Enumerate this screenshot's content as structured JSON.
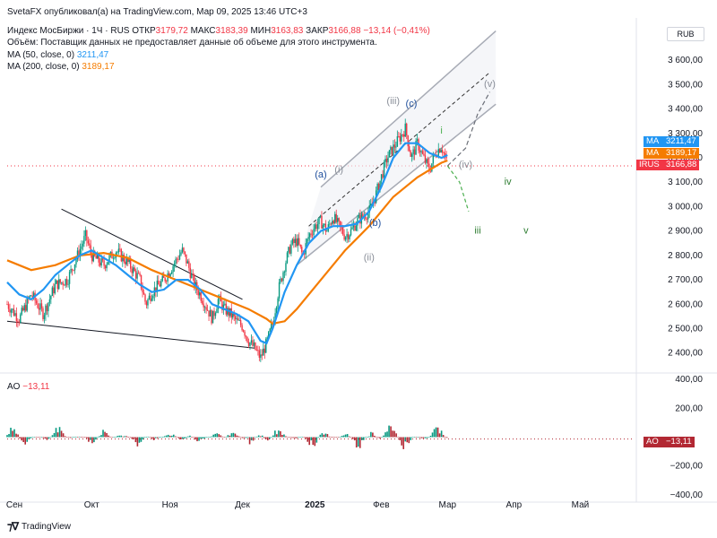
{
  "published_line": "SvetaFX опубликовал(а) на TradingView.com, Мар 09, 2025 13:46 UTC+3",
  "legend": {
    "symbol": "Индекс МосБиржи · 1Ч · RUS",
    "open_label": "ОТКР",
    "open": "3179,72",
    "high_label": "МАКС",
    "high": "3183,39",
    "low_label": "МИН",
    "low": "3163,83",
    "close_label": "ЗАКР",
    "close": "3166,88",
    "change": "−13,14 (−0,41%)",
    "volume_note": "Объём: Поставщик данных не предоставляет данные об объеме для этого инструмента.",
    "ma50_label": "MA (50, close, 0)",
    "ma50_value": "3211,47",
    "ma200_label": "MA (200, close, 0)",
    "ma200_value": "3189,17"
  },
  "currency": "RUB",
  "badges": [
    {
      "label": "MA",
      "value": "3211,47",
      "color": "#2196f3"
    },
    {
      "label": "MA",
      "value": "3189,17",
      "color": "#f57c00"
    },
    {
      "label": "IRUS",
      "value": "3166,88",
      "color": "#f23645"
    }
  ],
  "ao_legend": {
    "label": "AO",
    "value": "−13,11"
  },
  "ao_badge": {
    "label": "AO",
    "value": "−13,11",
    "color": "#b22833"
  },
  "footer": {
    "brand": "TradingView"
  },
  "chart_data": {
    "type": "line",
    "main": {
      "ylim": [
        2340,
        3700
      ],
      "y_ticks": [
        2400,
        2500,
        2600,
        2700,
        2800,
        2900,
        3000,
        3100,
        3200,
        3300,
        3400,
        3500,
        3600
      ],
      "y_tick_labels": [
        "2 400,00",
        "2 500,00",
        "2 600,00",
        "2 700,00",
        "2 800,00",
        "2 900,00",
        "3 000,00",
        "3 100,00",
        "3 200,00",
        "3 300,00",
        "3 400,00",
        "3 500,00",
        "3 600,00"
      ],
      "last_close": 3166.88,
      "price_path": [
        [
          0,
          2600
        ],
        [
          2,
          2540
        ],
        [
          4,
          2640
        ],
        [
          6,
          2560
        ],
        [
          8,
          2680
        ],
        [
          10,
          2700
        ],
        [
          12,
          2820
        ],
        [
          13,
          2880
        ],
        [
          14,
          2800
        ],
        [
          16,
          2760
        ],
        [
          18,
          2820
        ],
        [
          20,
          2770
        ],
        [
          22,
          2700
        ],
        [
          23,
          2600
        ],
        [
          24,
          2650
        ],
        [
          26,
          2700
        ],
        [
          28,
          2780
        ],
        [
          29,
          2820
        ],
        [
          30,
          2760
        ],
        [
          31,
          2680
        ],
        [
          32,
          2640
        ],
        [
          33,
          2590
        ],
        [
          34,
          2540
        ],
        [
          35,
          2620
        ],
        [
          36,
          2580
        ],
        [
          37,
          2560
        ],
        [
          38,
          2530
        ],
        [
          39,
          2510
        ],
        [
          40,
          2450
        ],
        [
          41,
          2420
        ],
        [
          42,
          2380
        ],
        [
          43,
          2440
        ],
        [
          44,
          2520
        ],
        [
          45,
          2660
        ],
        [
          46,
          2760
        ],
        [
          47,
          2840
        ],
        [
          48,
          2860
        ],
        [
          49,
          2800
        ],
        [
          50,
          2880
        ],
        [
          51,
          2920
        ],
        [
          52,
          2940
        ],
        [
          53,
          2900
        ],
        [
          54,
          2960
        ],
        [
          55,
          2920
        ],
        [
          56,
          2880
        ],
        [
          57,
          2900
        ],
        [
          58,
          2940
        ],
        [
          59,
          2960
        ],
        [
          60,
          2980
        ],
        [
          61,
          3040
        ],
        [
          62,
          3120
        ],
        [
          63,
          3200
        ],
        [
          64,
          3240
        ],
        [
          65,
          3280
        ],
        [
          66,
          3320
        ],
        [
          67,
          3200
        ],
        [
          68,
          3260
        ],
        [
          69,
          3200
        ],
        [
          70,
          3150
        ],
        [
          71,
          3220
        ],
        [
          72,
          3250
        ],
        [
          73,
          3167
        ]
      ],
      "ma50_path": [
        [
          0,
          2690
        ],
        [
          2,
          2640
        ],
        [
          4,
          2620
        ],
        [
          6,
          2660
        ],
        [
          8,
          2720
        ],
        [
          10,
          2760
        ],
        [
          12,
          2800
        ],
        [
          14,
          2820
        ],
        [
          16,
          2790
        ],
        [
          18,
          2760
        ],
        [
          20,
          2720
        ],
        [
          22,
          2680
        ],
        [
          24,
          2650
        ],
        [
          26,
          2660
        ],
        [
          28,
          2700
        ],
        [
          30,
          2700
        ],
        [
          32,
          2660
        ],
        [
          34,
          2600
        ],
        [
          36,
          2580
        ],
        [
          38,
          2560
        ],
        [
          40,
          2530
        ],
        [
          42,
          2450
        ],
        [
          43,
          2440
        ],
        [
          44,
          2500
        ],
        [
          46,
          2650
        ],
        [
          48,
          2760
        ],
        [
          50,
          2850
        ],
        [
          52,
          2900
        ],
        [
          54,
          2920
        ],
        [
          56,
          2920
        ],
        [
          58,
          2930
        ],
        [
          60,
          2980
        ],
        [
          62,
          3080
        ],
        [
          64,
          3200
        ],
        [
          66,
          3260
        ],
        [
          68,
          3260
        ],
        [
          70,
          3220
        ],
        [
          72,
          3200
        ],
        [
          73,
          3211
        ]
      ],
      "ma200_path": [
        [
          0,
          2780
        ],
        [
          4,
          2740
        ],
        [
          8,
          2760
        ],
        [
          12,
          2800
        ],
        [
          16,
          2810
        ],
        [
          20,
          2790
        ],
        [
          24,
          2740
        ],
        [
          28,
          2700
        ],
        [
          32,
          2660
        ],
        [
          36,
          2620
        ],
        [
          40,
          2580
        ],
        [
          43,
          2540
        ],
        [
          44,
          2520
        ],
        [
          46,
          2530
        ],
        [
          48,
          2580
        ],
        [
          50,
          2640
        ],
        [
          52,
          2700
        ],
        [
          54,
          2760
        ],
        [
          56,
          2820
        ],
        [
          58,
          2870
        ],
        [
          60,
          2920
        ],
        [
          62,
          2980
        ],
        [
          64,
          3040
        ],
        [
          66,
          3080
        ],
        [
          68,
          3120
        ],
        [
          70,
          3150
        ],
        [
          72,
          3180
        ],
        [
          73,
          3189
        ]
      ],
      "wave_labels": [
        {
          "text": "(a)",
          "x": 52,
          "y": 3120,
          "color": "#1e4e9c"
        },
        {
          "text": "(i)",
          "x": 55,
          "y": 3140,
          "color": "#8a8f99"
        },
        {
          "text": "(b)",
          "x": 61,
          "y": 2920,
          "color": "#1e4e9c"
        },
        {
          "text": "(ii)",
          "x": 60,
          "y": 2780,
          "color": "#8a8f99"
        },
        {
          "text": "(iii)",
          "x": 64,
          "y": 3420,
          "color": "#8a8f99"
        },
        {
          "text": "(c)",
          "x": 67,
          "y": 3410,
          "color": "#1e4e9c"
        },
        {
          "text": "i",
          "x": 72,
          "y": 3300,
          "color": "#4caf50"
        },
        {
          "text": "(iv)",
          "x": 76,
          "y": 3160,
          "color": "#8a8f99"
        },
        {
          "text": "(v)",
          "x": 80,
          "y": 3490,
          "color": "#8a8f99"
        },
        {
          "text": "iv",
          "x": 83,
          "y": 3090,
          "color": "#2e7d32"
        },
        {
          "text": "iii",
          "x": 78,
          "y": 2890,
          "color": "#2e7d32"
        },
        {
          "text": "v",
          "x": 86,
          "y": 2890,
          "color": "#2e7d32"
        }
      ]
    },
    "ao": {
      "ylim": [
        -420,
        420
      ],
      "y_ticks": [
        400,
        200,
        -200,
        -400
      ],
      "y_tick_labels": [
        "400,00",
        "200,00",
        "−200,00",
        "−400,00"
      ],
      "last_value": -13.11
    },
    "x_labels": [
      {
        "label": "Сен",
        "x": 0
      },
      {
        "label": "Окт",
        "x": 14
      },
      {
        "label": "Ноя",
        "x": 27
      },
      {
        "label": "Дек",
        "x": 39
      },
      {
        "label": "2025",
        "x": 51,
        "bold": true
      },
      {
        "label": "Фев",
        "x": 62
      },
      {
        "label": "Мар",
        "x": 73
      },
      {
        "label": "Апр",
        "x": 84
      },
      {
        "label": "Май",
        "x": 95
      }
    ]
  }
}
